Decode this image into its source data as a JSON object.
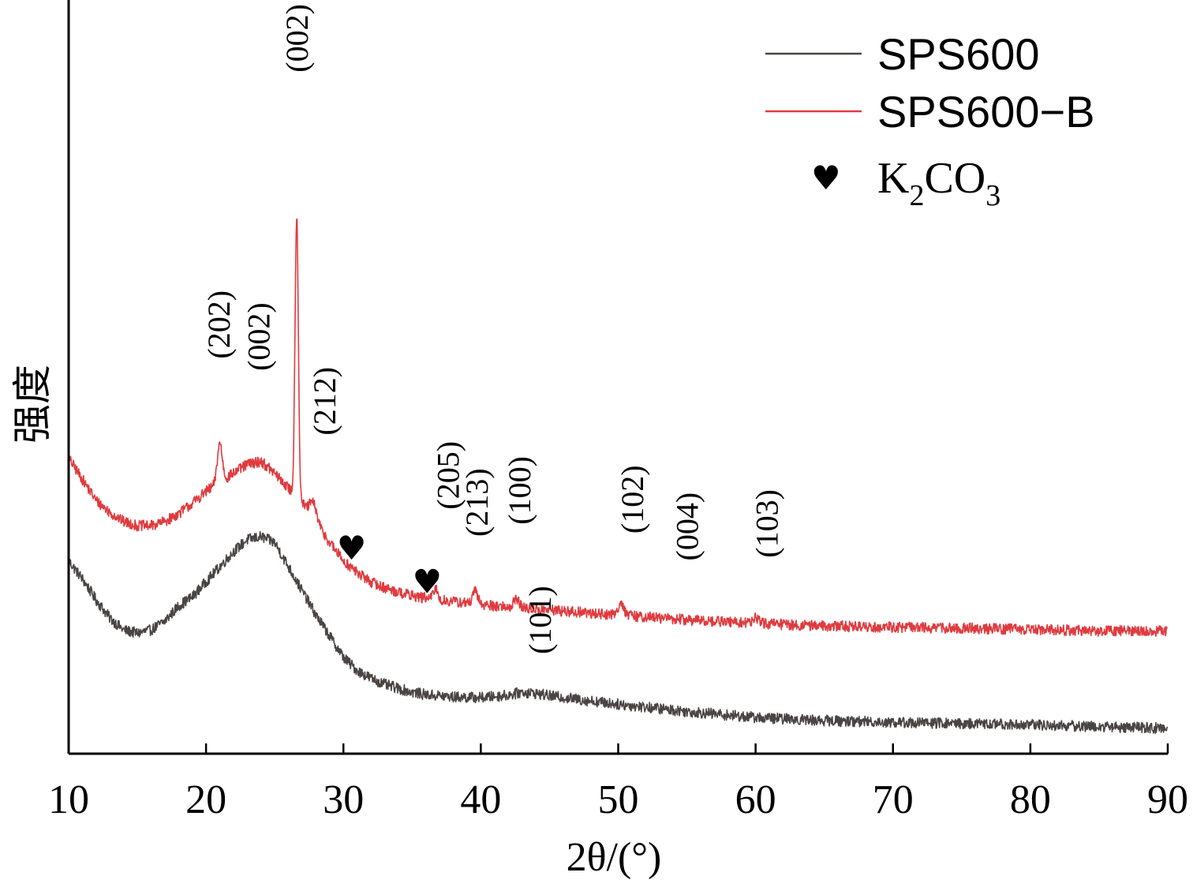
{
  "chart_data": {
    "type": "line",
    "title": "",
    "xlabel": "2θ/(°)",
    "ylabel": "强度",
    "xlim": [
      10,
      90
    ],
    "x_ticks": [
      "10",
      "20",
      "30",
      "40",
      "50",
      "60",
      "70",
      "80",
      "90"
    ],
    "y_ticks": [],
    "grid": false,
    "legend_position": "top-right",
    "legend": [
      {
        "label": "SPS600",
        "color": "#4a4443",
        "kind": "line"
      },
      {
        "label": "SPS600−B",
        "color": "#e03a3e",
        "kind": "line"
      },
      {
        "label": "K2CO3",
        "kind": "marker",
        "symbol": "♥",
        "formula": [
          "K",
          "2",
          "CO",
          "3"
        ]
      }
    ],
    "series": [
      {
        "name": "SPS600",
        "color": "#4a4443",
        "noise": 0.9,
        "points": [
          [
            10,
            32.0
          ],
          [
            11,
            29.0
          ],
          [
            12,
            25.5
          ],
          [
            13,
            22.5
          ],
          [
            14,
            20.5
          ],
          [
            15,
            20.0
          ],
          [
            16,
            20.5
          ],
          [
            17,
            22.0
          ],
          [
            18,
            24.5
          ],
          [
            19,
            26.0
          ],
          [
            20,
            28.5
          ],
          [
            21,
            31.0
          ],
          [
            22,
            33.5
          ],
          [
            23,
            35.5
          ],
          [
            24,
            36.0
          ],
          [
            25,
            35.0
          ],
          [
            26,
            31.0
          ],
          [
            27,
            27.0
          ],
          [
            28,
            23.0
          ],
          [
            29,
            19.5
          ],
          [
            30,
            16.0
          ],
          [
            31,
            13.8
          ],
          [
            32,
            12.5
          ],
          [
            33,
            11.5
          ],
          [
            34,
            10.8
          ],
          [
            35,
            10.2
          ],
          [
            36,
            9.8
          ],
          [
            38,
            9.4
          ],
          [
            40,
            9.3
          ],
          [
            42,
            9.7
          ],
          [
            43,
            10.2
          ],
          [
            44,
            10.0
          ],
          [
            45,
            9.6
          ],
          [
            50,
            8.2
          ],
          [
            55,
            7.0
          ],
          [
            60,
            6.0
          ],
          [
            65,
            5.5
          ],
          [
            70,
            5.2
          ],
          [
            75,
            5.0
          ],
          [
            80,
            4.8
          ],
          [
            85,
            4.5
          ],
          [
            90,
            4.2
          ]
        ]
      },
      {
        "name": "SPS600−B",
        "color": "#e03a3e",
        "noise": 0.9,
        "points": [
          [
            10,
            49.0
          ],
          [
            11,
            45.5
          ],
          [
            12,
            42.0
          ],
          [
            13,
            40.0
          ],
          [
            14,
            38.5
          ],
          [
            15,
            37.8
          ],
          [
            16,
            37.8
          ],
          [
            17,
            38.5
          ],
          [
            18,
            39.8
          ],
          [
            19,
            41.5
          ],
          [
            20,
            43.5
          ],
          [
            21,
            45.0
          ],
          [
            22,
            46.5
          ],
          [
            23,
            48.0
          ],
          [
            24,
            48.5
          ],
          [
            25,
            46.5
          ],
          [
            26,
            44.0
          ],
          [
            27,
            41.5
          ],
          [
            28,
            38.5
          ],
          [
            29,
            35.0
          ],
          [
            30,
            32.0
          ],
          [
            31,
            30.0
          ],
          [
            32,
            28.5
          ],
          [
            33,
            27.5
          ],
          [
            34,
            26.8
          ],
          [
            35,
            26.2
          ],
          [
            36,
            25.8
          ],
          [
            38,
            25.2
          ],
          [
            40,
            24.8
          ],
          [
            42,
            24.3
          ],
          [
            45,
            23.8
          ],
          [
            50,
            23.0
          ],
          [
            55,
            22.2
          ],
          [
            60,
            21.6
          ],
          [
            65,
            21.2
          ],
          [
            70,
            21.0
          ],
          [
            75,
            20.8
          ],
          [
            80,
            20.6
          ],
          [
            85,
            20.4
          ],
          [
            90,
            20.3
          ]
        ],
        "peaks": [
          {
            "x": 21.0,
            "height": 6.5,
            "width": 0.18
          },
          {
            "x": 26.6,
            "height": 47.0,
            "width": 0.12
          },
          {
            "x": 27.8,
            "height": 2.5,
            "width": 0.25
          },
          {
            "x": 36.7,
            "height": 1.8,
            "width": 0.15
          },
          {
            "x": 39.6,
            "height": 2.0,
            "width": 0.18
          },
          {
            "x": 42.6,
            "height": 1.5,
            "width": 0.2
          },
          {
            "x": 50.2,
            "height": 2.2,
            "width": 0.2
          },
          {
            "x": 60.0,
            "height": 1.0,
            "width": 0.2
          }
        ]
      }
    ],
    "annotations": [
      {
        "text": "(002)",
        "x": 26.6,
        "y": 113.0
      },
      {
        "text": "(202)",
        "x": 20.9,
        "y": 65.5
      },
      {
        "text": "(002)",
        "x": 23.8,
        "y": 63.5
      },
      {
        "text": "(212)",
        "x": 28.6,
        "y": 52.8
      },
      {
        "text": "(205)",
        "x": 37.6,
        "y": 40.5
      },
      {
        "text": "(213)",
        "x": 39.7,
        "y": 36.0
      },
      {
        "text": "(100)",
        "x": 42.8,
        "y": 38.0
      },
      {
        "text": "(102)",
        "x": 51.0,
        "y": 36.5
      },
      {
        "text": "(004)",
        "x": 55.0,
        "y": 32.0
      },
      {
        "text": "(103)",
        "x": 60.8,
        "y": 32.5
      },
      {
        "text": "(101)",
        "x": 44.3,
        "y": 16.5
      }
    ],
    "markers": [
      {
        "symbol": "♥",
        "x": 30.6,
        "y": 34.0
      },
      {
        "symbol": "♥",
        "x": 36.1,
        "y": 28.5
      }
    ]
  }
}
